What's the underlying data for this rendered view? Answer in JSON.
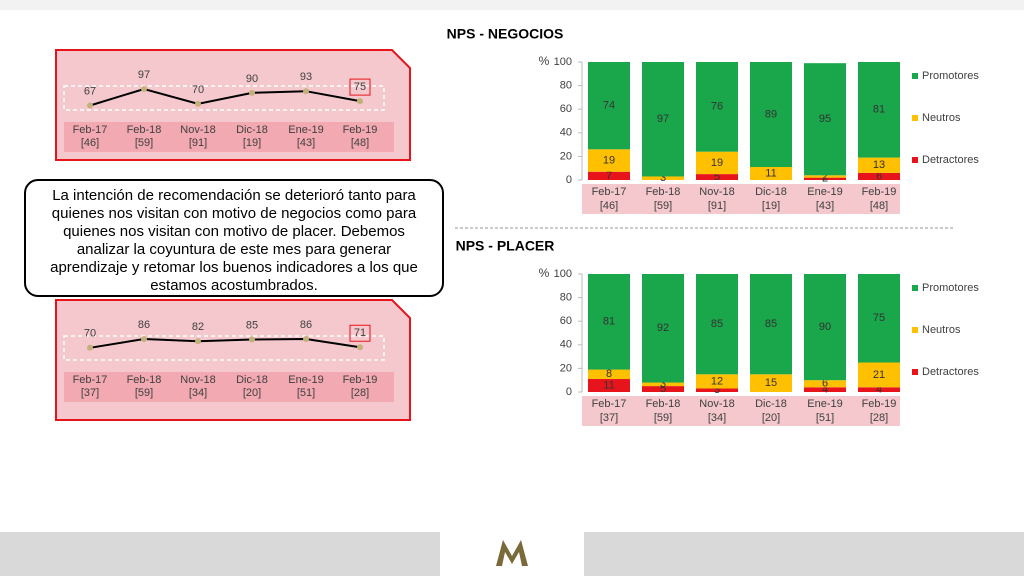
{
  "callout": "La intención de recomendación se deterioró tanto para quienes nos visitan con motivo de negocios como para quienes nos visitan con motivo de placer. Debemos analizar la coyuntura de este mes para generar aprendizaje y retomar los buenos indicadores a los que estamos acostumbrados.",
  "chart_data": [
    {
      "type": "line",
      "categories": [
        "Feb-17",
        "Feb-18",
        "Nov-18",
        "Dic-18",
        "Ene-19",
        "Feb-19"
      ],
      "sample_sizes": [
        "[46]",
        "[59]",
        "[91]",
        "[19]",
        "[43]",
        "[48]"
      ],
      "values": [
        67,
        97,
        70,
        90,
        93,
        75
      ],
      "color": "#000000"
    },
    {
      "type": "stacked_bar",
      "title": "NPS - NEGOCIOS",
      "y_label": "%",
      "categories": [
        "Feb-17",
        "Feb-18",
        "Nov-18",
        "Dic-18",
        "Ene-19",
        "Feb-19"
      ],
      "sample_sizes": [
        "[46]",
        "[59]",
        "[91]",
        "[19]",
        "[43]",
        "[48]"
      ],
      "series": [
        {
          "name": "Detractores",
          "color": "#e8141b",
          "values": [
            7,
            null,
            5,
            null,
            2,
            6
          ]
        },
        {
          "name": "Neutros",
          "color": "#ffc000",
          "values": [
            19,
            3,
            19,
            11,
            2,
            13
          ]
        },
        {
          "name": "Promotores",
          "color": "#1aa64a",
          "values": [
            74,
            97,
            76,
            89,
            95,
            81
          ]
        }
      ],
      "ylim": [
        0,
        100
      ],
      "yticks": [
        0,
        20,
        40,
        60,
        80,
        100
      ],
      "legend": "right"
    },
    {
      "type": "line",
      "categories": [
        "Feb-17",
        "Feb-18",
        "Nov-18",
        "Dic-18",
        "Ene-19",
        "Feb-19"
      ],
      "sample_sizes": [
        "[37]",
        "[59]",
        "[34]",
        "[20]",
        "[51]",
        "[28]"
      ],
      "values": [
        70,
        86,
        82,
        85,
        86,
        71
      ],
      "color": "#000000"
    },
    {
      "type": "stacked_bar",
      "title": "NPS - PLACER",
      "y_label": "%",
      "categories": [
        "Feb-17",
        "Feb-18",
        "Nov-18",
        "Dic-18",
        "Ene-19",
        "Feb-19"
      ],
      "sample_sizes": [
        "[37]",
        "[59]",
        "[34]",
        "[20]",
        "[51]",
        "[28]"
      ],
      "series": [
        {
          "name": "Detractores",
          "color": "#e8141b",
          "values": [
            11,
            5,
            3,
            null,
            4,
            4
          ]
        },
        {
          "name": "Neutros",
          "color": "#ffc000",
          "values": [
            8,
            3,
            12,
            15,
            6,
            21
          ]
        },
        {
          "name": "Promotores",
          "color": "#1aa64a",
          "values": [
            81,
            92,
            85,
            85,
            90,
            75
          ]
        }
      ],
      "ylim": [
        0,
        100
      ],
      "yticks": [
        0,
        20,
        40,
        60,
        80,
        100
      ],
      "legend": "right"
    }
  ]
}
